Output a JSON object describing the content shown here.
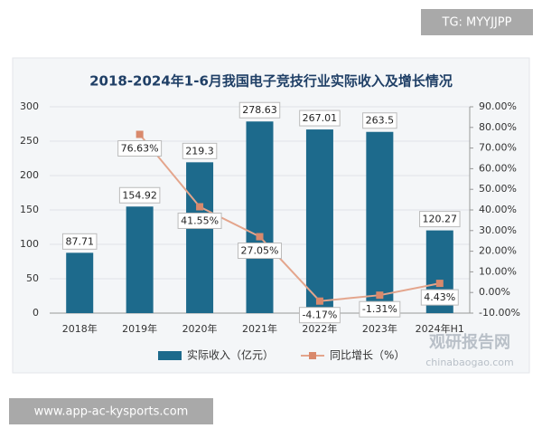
{
  "watermark_top": "TG: MYYJJPP",
  "watermark_bottom": "www.app-ac-kysports.com",
  "source_logo": "观研报告网",
  "source_url": "chinabaogao.com",
  "chart_data": {
    "type": "bar",
    "title": "2018-2024年1-6月我国电子竞技行业实际收入及增长情况",
    "categories": [
      "2018年",
      "2019年",
      "2020年",
      "2021年",
      "2022年",
      "2023年",
      "2024年H1"
    ],
    "series": [
      {
        "name": "实际收入（亿元）",
        "type": "bar",
        "color": "#1d6a8c",
        "values": [
          87.71,
          154.92,
          219.3,
          278.63,
          267.01,
          263.5,
          120.27
        ]
      },
      {
        "name": "同比增长（%）",
        "type": "line",
        "axis": "y2",
        "color": "#e4a58c",
        "values": [
          null,
          76.63,
          41.55,
          27.05,
          -4.17,
          -1.31,
          4.43
        ],
        "value_labels": [
          null,
          "76.63%",
          "41.55%",
          "27.05%",
          "-4.17%",
          "-1.31%",
          "4.43%"
        ]
      }
    ],
    "ylim": [
      0,
      300
    ],
    "yticks": [
      0,
      50,
      100,
      150,
      200,
      250,
      300
    ],
    "y2lim": [
      -10,
      90
    ],
    "y2ticks": [
      {
        "value": -10,
        "label": "-10.00%"
      },
      {
        "value": 0,
        "label": "0.00%"
      },
      {
        "value": 10,
        "label": "10.00%"
      },
      {
        "value": 20,
        "label": "20.00%"
      },
      {
        "value": 30,
        "label": "30.00%"
      },
      {
        "value": 40,
        "label": "40.00%"
      },
      {
        "value": 50,
        "label": "50.00%"
      },
      {
        "value": 60,
        "label": "60.00%"
      },
      {
        "value": 70,
        "label": "70.00%"
      },
      {
        "value": 80,
        "label": "80.00%"
      },
      {
        "value": 90,
        "label": "90.00%"
      }
    ],
    "grid": true,
    "legend": "bottom"
  }
}
